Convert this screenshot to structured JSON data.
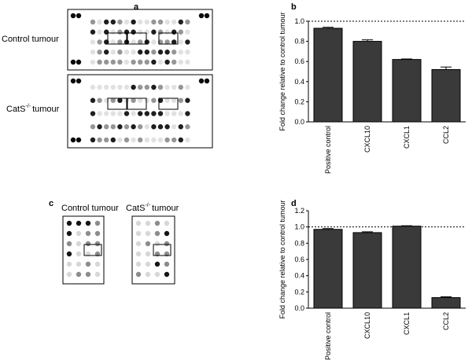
{
  "panel_labels": [
    "a",
    "b",
    "c",
    "d"
  ],
  "panel_a": {
    "control": "Control tumour",
    "cats": {
      "prefix": "CatS",
      "sup": "-/-",
      "suffix": "tumour"
    }
  },
  "panel_c": {
    "control": "Control tumour",
    "cats": {
      "prefix": "CatS",
      "sup": "-/-",
      "suffix": "tumour"
    }
  },
  "chart_data": [
    {
      "type": "bar",
      "ylabel": "Fold change relative to control tumour",
      "categories": [
        "Positive control",
        "CXCL10",
        "CXCL1",
        "CCL2"
      ],
      "values": [
        0.93,
        0.8,
        0.62,
        0.52
      ],
      "errors": [
        0.01,
        0.015,
        0.005,
        0.025
      ],
      "color": "#3a3a3a",
      "reference_line": 1,
      "ylim": [
        0,
        1.0
      ],
      "yticks": [
        {
          "value": 0,
          "label": "0.0"
        },
        0.2,
        0.4,
        0.6,
        0.8,
        {
          "value": 1.0,
          "label": "1.0"
        }
      ]
    },
    {
      "type": "bar",
      "ylabel": "Fold change relative to control tumour",
      "categories": [
        "Positive control",
        "CXCL10",
        "CXCL1",
        "CCL2"
      ],
      "values": [
        0.97,
        0.93,
        1.01,
        0.13
      ],
      "errors": [
        0.01,
        0.01,
        0.005,
        0.01
      ],
      "color": "#3a3a3a",
      "reference_line": 1,
      "ylim": [
        0,
        1.2
      ],
      "yticks": [
        {
          "value": 0,
          "label": "0.0"
        },
        0.2,
        0.4,
        0.6,
        0.8,
        {
          "value": 1.0,
          "label": "1.0"
        },
        1.2
      ]
    }
  ]
}
